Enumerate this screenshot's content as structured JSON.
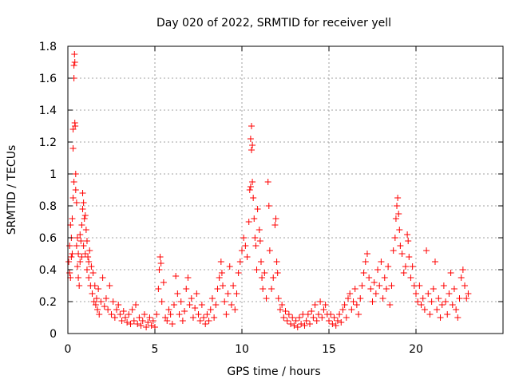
{
  "chart_data": {
    "type": "scatter",
    "title": "Day 020 of 2022, SRMTID for receiver yell",
    "xlabel": "GPS time / hours",
    "ylabel": "SRMTID / TECUs",
    "xlim": [
      0,
      25
    ],
    "ylim": [
      0,
      1.8
    ],
    "xticks": [
      "0",
      "5",
      "10",
      "15",
      "20"
    ],
    "xtick_values": [
      0,
      5,
      10,
      15,
      20
    ],
    "yticks": [
      "0",
      "0.2",
      "0.4",
      "0.6",
      "0.8",
      "1",
      "1.2",
      "1.4",
      "1.6",
      "1.8"
    ],
    "ytick_values": [
      0,
      0.2,
      0.4,
      0.6,
      0.8,
      1.0,
      1.2,
      1.4,
      1.6,
      1.8
    ],
    "grid": true,
    "marker": "+",
    "color": "#ff0000",
    "series": [
      {
        "name": "SRMTID",
        "points": [
          [
            0.05,
            0.45
          ],
          [
            0.1,
            0.38
          ],
          [
            0.1,
            0.55
          ],
          [
            0.15,
            0.68
          ],
          [
            0.15,
            0.35
          ],
          [
            0.2,
            0.6
          ],
          [
            0.2,
            0.48
          ],
          [
            0.25,
            0.72
          ],
          [
            0.25,
            0.5
          ],
          [
            0.3,
            0.85
          ],
          [
            0.3,
            1.16
          ],
          [
            0.3,
            1.28
          ],
          [
            0.35,
            0.95
          ],
          [
            0.35,
            1.6
          ],
          [
            0.35,
            1.68
          ],
          [
            0.38,
            1.75
          ],
          [
            0.4,
            1.7
          ],
          [
            0.4,
            1.32
          ],
          [
            0.42,
            1.3
          ],
          [
            0.45,
            1.0
          ],
          [
            0.45,
            0.9
          ],
          [
            0.5,
            0.82
          ],
          [
            0.5,
            0.55
          ],
          [
            0.55,
            0.6
          ],
          [
            0.55,
            0.42
          ],
          [
            0.6,
            0.35
          ],
          [
            0.6,
            0.5
          ],
          [
            0.65,
            0.3
          ],
          [
            0.7,
            0.45
          ],
          [
            0.7,
            0.62
          ],
          [
            0.75,
            0.58
          ],
          [
            0.8,
            0.68
          ],
          [
            0.8,
            0.48
          ],
          [
            0.85,
            0.78
          ],
          [
            0.85,
            0.88
          ],
          [
            0.9,
            0.82
          ],
          [
            0.9,
            0.55
          ],
          [
            0.95,
            0.72
          ],
          [
            1.0,
            0.74
          ],
          [
            1.0,
            0.5
          ],
          [
            1.05,
            0.65
          ],
          [
            1.1,
            0.4
          ],
          [
            1.1,
            0.58
          ],
          [
            1.15,
            0.48
          ],
          [
            1.2,
            0.35
          ],
          [
            1.2,
            0.45
          ],
          [
            1.25,
            0.52
          ],
          [
            1.3,
            0.3
          ],
          [
            1.35,
            0.42
          ],
          [
            1.4,
            0.25
          ],
          [
            1.45,
            0.38
          ],
          [
            1.5,
            0.2
          ],
          [
            1.55,
            0.3
          ],
          [
            1.6,
            0.18
          ],
          [
            1.65,
            0.22
          ],
          [
            1.7,
            0.15
          ],
          [
            1.75,
            0.28
          ],
          [
            1.8,
            0.12
          ],
          [
            1.9,
            0.2
          ],
          [
            2.0,
            0.35
          ],
          [
            2.1,
            0.17
          ],
          [
            2.2,
            0.22
          ],
          [
            2.3,
            0.15
          ],
          [
            2.4,
            0.3
          ],
          [
            2.5,
            0.12
          ],
          [
            2.6,
            0.2
          ],
          [
            2.7,
            0.1
          ],
          [
            2.8,
            0.15
          ],
          [
            2.9,
            0.18
          ],
          [
            3.0,
            0.12
          ],
          [
            3.1,
            0.08
          ],
          [
            3.2,
            0.14
          ],
          [
            3.3,
            0.1
          ],
          [
            3.4,
            0.07
          ],
          [
            3.5,
            0.12
          ],
          [
            3.6,
            0.06
          ],
          [
            3.7,
            0.15
          ],
          [
            3.8,
            0.08
          ],
          [
            3.9,
            0.18
          ],
          [
            4.0,
            0.06
          ],
          [
            4.1,
            0.1
          ],
          [
            4.2,
            0.05
          ],
          [
            4.3,
            0.08
          ],
          [
            4.4,
            0.12
          ],
          [
            4.5,
            0.04
          ],
          [
            4.6,
            0.07
          ],
          [
            4.7,
            0.1
          ],
          [
            4.8,
            0.05
          ],
          [
            4.9,
            0.08
          ],
          [
            5.0,
            0.04
          ],
          [
            5.1,
            0.12
          ],
          [
            5.2,
            0.28
          ],
          [
            5.25,
            0.4
          ],
          [
            5.3,
            0.48
          ],
          [
            5.35,
            0.44
          ],
          [
            5.4,
            0.2
          ],
          [
            5.5,
            0.32
          ],
          [
            5.6,
            0.1
          ],
          [
            5.7,
            0.08
          ],
          [
            5.8,
            0.15
          ],
          [
            5.9,
            0.12
          ],
          [
            6.0,
            0.06
          ],
          [
            6.1,
            0.18
          ],
          [
            6.2,
            0.36
          ],
          [
            6.3,
            0.25
          ],
          [
            6.4,
            0.12
          ],
          [
            6.5,
            0.2
          ],
          [
            6.6,
            0.08
          ],
          [
            6.7,
            0.14
          ],
          [
            6.8,
            0.28
          ],
          [
            6.9,
            0.35
          ],
          [
            7.0,
            0.18
          ],
          [
            7.1,
            0.22
          ],
          [
            7.2,
            0.1
          ],
          [
            7.3,
            0.16
          ],
          [
            7.4,
            0.25
          ],
          [
            7.5,
            0.12
          ],
          [
            7.6,
            0.08
          ],
          [
            7.7,
            0.18
          ],
          [
            7.8,
            0.1
          ],
          [
            7.9,
            0.06
          ],
          [
            8.0,
            0.12
          ],
          [
            8.1,
            0.08
          ],
          [
            8.2,
            0.15
          ],
          [
            8.3,
            0.22
          ],
          [
            8.4,
            0.1
          ],
          [
            8.5,
            0.18
          ],
          [
            8.6,
            0.28
          ],
          [
            8.7,
            0.35
          ],
          [
            8.8,
            0.45
          ],
          [
            8.85,
            0.38
          ],
          [
            8.9,
            0.3
          ],
          [
            9.0,
            0.2
          ],
          [
            9.1,
            0.12
          ],
          [
            9.2,
            0.25
          ],
          [
            9.3,
            0.42
          ],
          [
            9.4,
            0.18
          ],
          [
            9.5,
            0.3
          ],
          [
            9.6,
            0.15
          ],
          [
            9.7,
            0.25
          ],
          [
            9.8,
            0.38
          ],
          [
            9.9,
            0.45
          ],
          [
            10.0,
            0.52
          ],
          [
            10.1,
            0.6
          ],
          [
            10.2,
            0.55
          ],
          [
            10.3,
            0.48
          ],
          [
            10.4,
            0.7
          ],
          [
            10.45,
            0.9
          ],
          [
            10.5,
            0.92
          ],
          [
            10.5,
            1.22
          ],
          [
            10.55,
            1.3
          ],
          [
            10.55,
            1.15
          ],
          [
            10.6,
            1.18
          ],
          [
            10.6,
            0.95
          ],
          [
            10.65,
            0.85
          ],
          [
            10.7,
            0.72
          ],
          [
            10.75,
            0.6
          ],
          [
            10.8,
            0.55
          ],
          [
            10.85,
            0.4
          ],
          [
            10.9,
            0.78
          ],
          [
            11.0,
            0.65
          ],
          [
            11.05,
            0.58
          ],
          [
            11.1,
            0.45
          ],
          [
            11.15,
            0.35
          ],
          [
            11.2,
            0.28
          ],
          [
            11.3,
            0.38
          ],
          [
            11.4,
            0.22
          ],
          [
            11.5,
            0.95
          ],
          [
            11.55,
            0.8
          ],
          [
            11.6,
            0.52
          ],
          [
            11.7,
            0.28
          ],
          [
            11.8,
            0.35
          ],
          [
            11.9,
            0.68
          ],
          [
            11.95,
            0.72
          ],
          [
            12.0,
            0.45
          ],
          [
            12.05,
            0.38
          ],
          [
            12.1,
            0.22
          ],
          [
            12.2,
            0.15
          ],
          [
            12.3,
            0.18
          ],
          [
            12.4,
            0.1
          ],
          [
            12.5,
            0.14
          ],
          [
            12.6,
            0.08
          ],
          [
            12.7,
            0.12
          ],
          [
            12.8,
            0.06
          ],
          [
            12.9,
            0.1
          ],
          [
            13.0,
            0.05
          ],
          [
            13.1,
            0.08
          ],
          [
            13.2,
            0.04
          ],
          [
            13.3,
            0.1
          ],
          [
            13.4,
            0.06
          ],
          [
            13.5,
            0.12
          ],
          [
            13.6,
            0.05
          ],
          [
            13.7,
            0.08
          ],
          [
            13.8,
            0.12
          ],
          [
            13.9,
            0.06
          ],
          [
            14.0,
            0.14
          ],
          [
            14.1,
            0.1
          ],
          [
            14.2,
            0.18
          ],
          [
            14.3,
            0.08
          ],
          [
            14.4,
            0.12
          ],
          [
            14.5,
            0.2
          ],
          [
            14.6,
            0.1
          ],
          [
            14.7,
            0.15
          ],
          [
            14.8,
            0.18
          ],
          [
            14.9,
            0.12
          ],
          [
            15.0,
            0.08
          ],
          [
            15.1,
            0.12
          ],
          [
            15.2,
            0.06
          ],
          [
            15.3,
            0.1
          ],
          [
            15.4,
            0.05
          ],
          [
            15.5,
            0.08
          ],
          [
            15.6,
            0.12
          ],
          [
            15.7,
            0.07
          ],
          [
            15.8,
            0.15
          ],
          [
            15.9,
            0.18
          ],
          [
            16.0,
            0.1
          ],
          [
            16.1,
            0.22
          ],
          [
            16.2,
            0.25
          ],
          [
            16.3,
            0.15
          ],
          [
            16.4,
            0.2
          ],
          [
            16.5,
            0.28
          ],
          [
            16.6,
            0.18
          ],
          [
            16.7,
            0.12
          ],
          [
            16.8,
            0.22
          ],
          [
            16.9,
            0.3
          ],
          [
            17.0,
            0.38
          ],
          [
            17.1,
            0.45
          ],
          [
            17.2,
            0.5
          ],
          [
            17.3,
            0.35
          ],
          [
            17.4,
            0.28
          ],
          [
            17.5,
            0.2
          ],
          [
            17.6,
            0.32
          ],
          [
            17.7,
            0.25
          ],
          [
            17.8,
            0.4
          ],
          [
            17.9,
            0.3
          ],
          [
            18.0,
            0.45
          ],
          [
            18.1,
            0.22
          ],
          [
            18.2,
            0.35
          ],
          [
            18.3,
            0.28
          ],
          [
            18.4,
            0.42
          ],
          [
            18.5,
            0.18
          ],
          [
            18.6,
            0.3
          ],
          [
            18.7,
            0.52
          ],
          [
            18.8,
            0.6
          ],
          [
            18.85,
            0.72
          ],
          [
            18.9,
            0.8
          ],
          [
            18.95,
            0.85
          ],
          [
            19.0,
            0.75
          ],
          [
            19.05,
            0.65
          ],
          [
            19.1,
            0.55
          ],
          [
            19.2,
            0.5
          ],
          [
            19.3,
            0.38
          ],
          [
            19.4,
            0.42
          ],
          [
            19.5,
            0.62
          ],
          [
            19.55,
            0.58
          ],
          [
            19.6,
            0.48
          ],
          [
            19.7,
            0.35
          ],
          [
            19.8,
            0.42
          ],
          [
            19.9,
            0.3
          ],
          [
            20.0,
            0.25
          ],
          [
            20.1,
            0.2
          ],
          [
            20.2,
            0.3
          ],
          [
            20.3,
            0.18
          ],
          [
            20.4,
            0.22
          ],
          [
            20.5,
            0.15
          ],
          [
            20.6,
            0.52
          ],
          [
            20.7,
            0.25
          ],
          [
            20.8,
            0.12
          ],
          [
            20.9,
            0.2
          ],
          [
            21.0,
            0.28
          ],
          [
            21.1,
            0.45
          ],
          [
            21.2,
            0.15
          ],
          [
            21.3,
            0.22
          ],
          [
            21.4,
            0.1
          ],
          [
            21.5,
            0.18
          ],
          [
            21.6,
            0.3
          ],
          [
            21.7,
            0.2
          ],
          [
            21.8,
            0.12
          ],
          [
            21.9,
            0.25
          ],
          [
            22.0,
            0.38
          ],
          [
            22.1,
            0.18
          ],
          [
            22.2,
            0.28
          ],
          [
            22.3,
            0.15
          ],
          [
            22.4,
            0.1
          ],
          [
            22.5,
            0.22
          ],
          [
            22.6,
            0.35
          ],
          [
            22.7,
            0.4
          ],
          [
            22.8,
            0.3
          ],
          [
            22.9,
            0.22
          ],
          [
            23.0,
            0.25
          ]
        ]
      }
    ]
  }
}
